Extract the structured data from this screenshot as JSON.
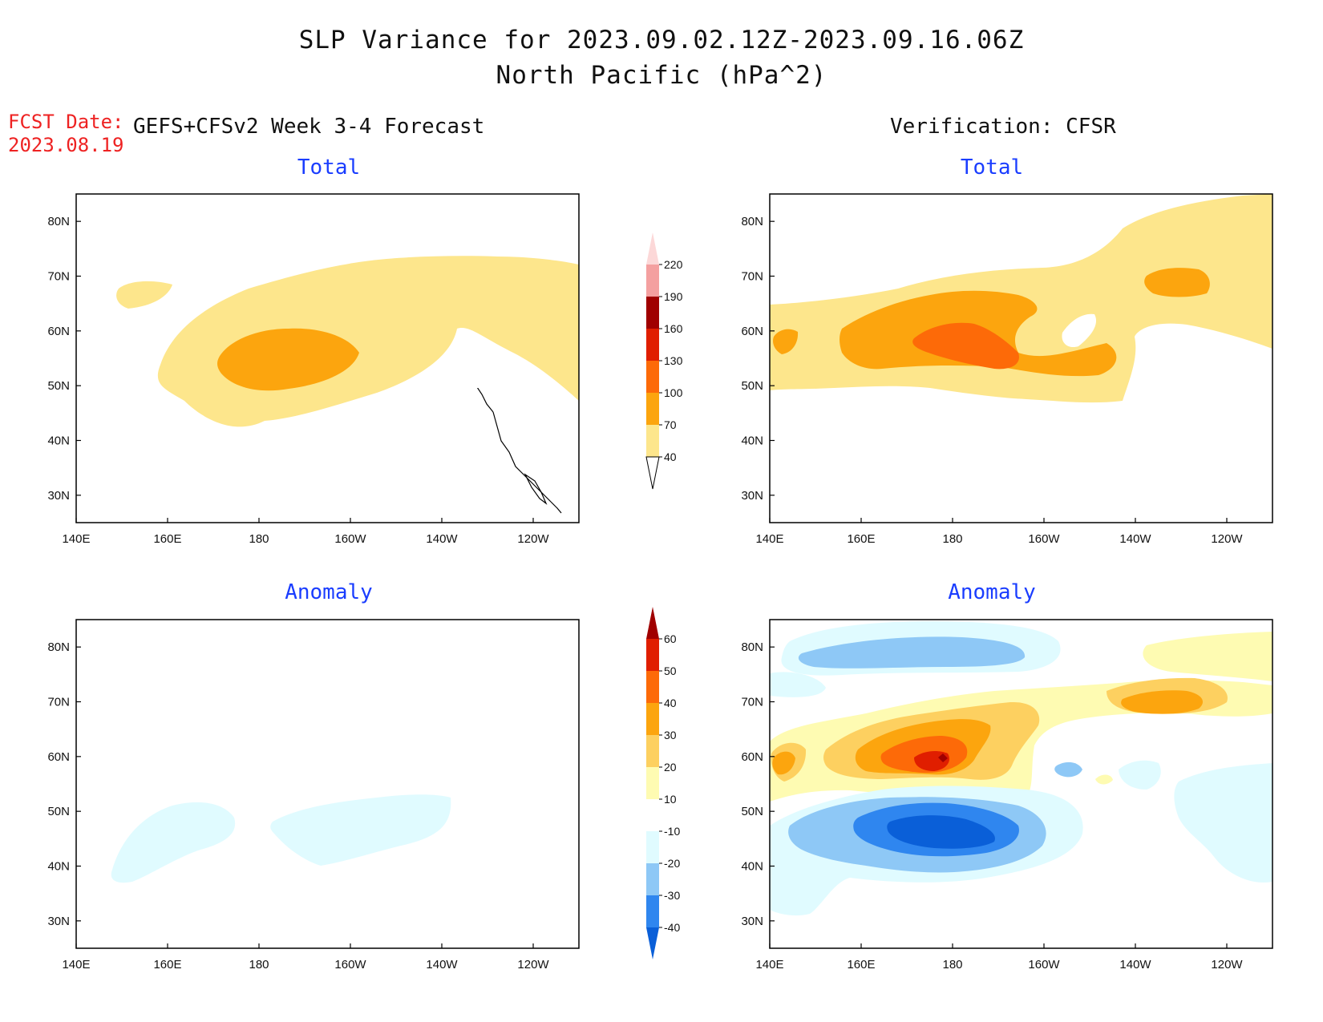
{
  "title_line1": "SLP Variance for 2023.09.02.12Z-2023.09.16.06Z",
  "title_line2": "North Pacific (hPa^2)",
  "fcst_label": "FCST Date:",
  "fcst_date": "2023.08.19",
  "left_header": "GEFS+CFSv2 Week 3-4 Forecast",
  "right_header": "Verification: CFSR",
  "panel_titles": {
    "total": "Total",
    "anomaly": "Anomaly"
  },
  "x_ticks": [
    "140E",
    "160E",
    "180",
    "160W",
    "140W",
    "120W"
  ],
  "y_ticks": [
    "80N",
    "70N",
    "60N",
    "50N",
    "40N",
    "30N"
  ],
  "total_scale": {
    "labels": [
      "40",
      "70",
      "100",
      "130",
      "160",
      "190",
      "220"
    ],
    "colors": [
      "#fde68c",
      "#fca50e",
      "#fd6a08",
      "#e01e00",
      "#a00000",
      "#f4a0a0",
      "#fcd8d8",
      "#fff0f0"
    ]
  },
  "anomaly_scale": {
    "labels": [
      "-40",
      "-30",
      "-20",
      "-10",
      "10",
      "20",
      "30",
      "40",
      "50",
      "60"
    ],
    "colors": [
      "#0a5fd8",
      "#2f86ef",
      "#8ec8f6",
      "#e0fbff",
      "#ffffff",
      "#fefbb2",
      "#fdd060",
      "#fca50e",
      "#fd6a08",
      "#e01e00",
      "#a00000"
    ]
  },
  "palette": {
    "yellow": "#fde68c",
    "orange": "#fca50e",
    "darkorange": "#fd6a08",
    "red": "#e01e00",
    "darkred": "#a00000",
    "lightyellow": "#fefbb2",
    "gold": "#fdd060",
    "icecyan": "#e0fbff",
    "lightblue": "#8ec8f6",
    "blue": "#2f86ef",
    "darkblue": "#0a5fd8"
  },
  "map_extent": {
    "lon_min": 140,
    "lon_max": 250,
    "lat_min": 25,
    "lat_max": 85
  }
}
